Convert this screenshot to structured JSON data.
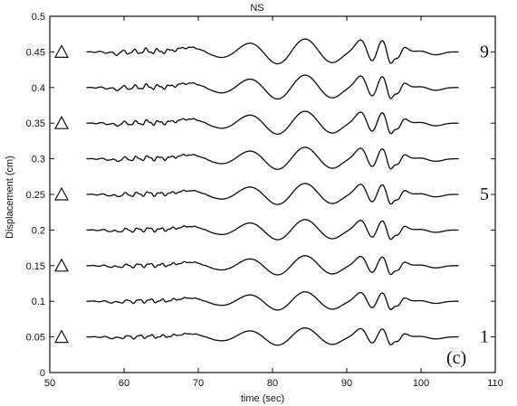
{
  "chart_data": {
    "type": "line",
    "title": "NS",
    "xlabel": "time (sec)",
    "ylabel": "Displacement (cm)",
    "xlim": [
      50,
      110
    ],
    "ylim": [
      0,
      0.5
    ],
    "x_ticks": [
      "50",
      "60",
      "70",
      "80",
      "90",
      "100",
      "110"
    ],
    "y_ticks": [
      "0",
      "0.05",
      "0.1",
      "0.15",
      "0.2",
      "0.25",
      "0.3",
      "0.35",
      "0.4",
      "0.45",
      "0.5"
    ],
    "grid": false,
    "trace_start_sec": 55,
    "trace_end_sec": 105,
    "baselines": [
      0.05,
      0.1,
      0.15,
      0.2,
      0.25,
      0.3,
      0.35,
      0.4,
      0.45
    ],
    "trace_labels": [
      {
        "text": "9",
        "trace_index": 8
      },
      {
        "text": "5",
        "trace_index": 4
      },
      {
        "text": "1",
        "trace_index": 0
      }
    ],
    "panel_label": "(c)",
    "marker_shape": "triangle",
    "marker_trace_indices": [
      0,
      2,
      4,
      6,
      8
    ]
  }
}
